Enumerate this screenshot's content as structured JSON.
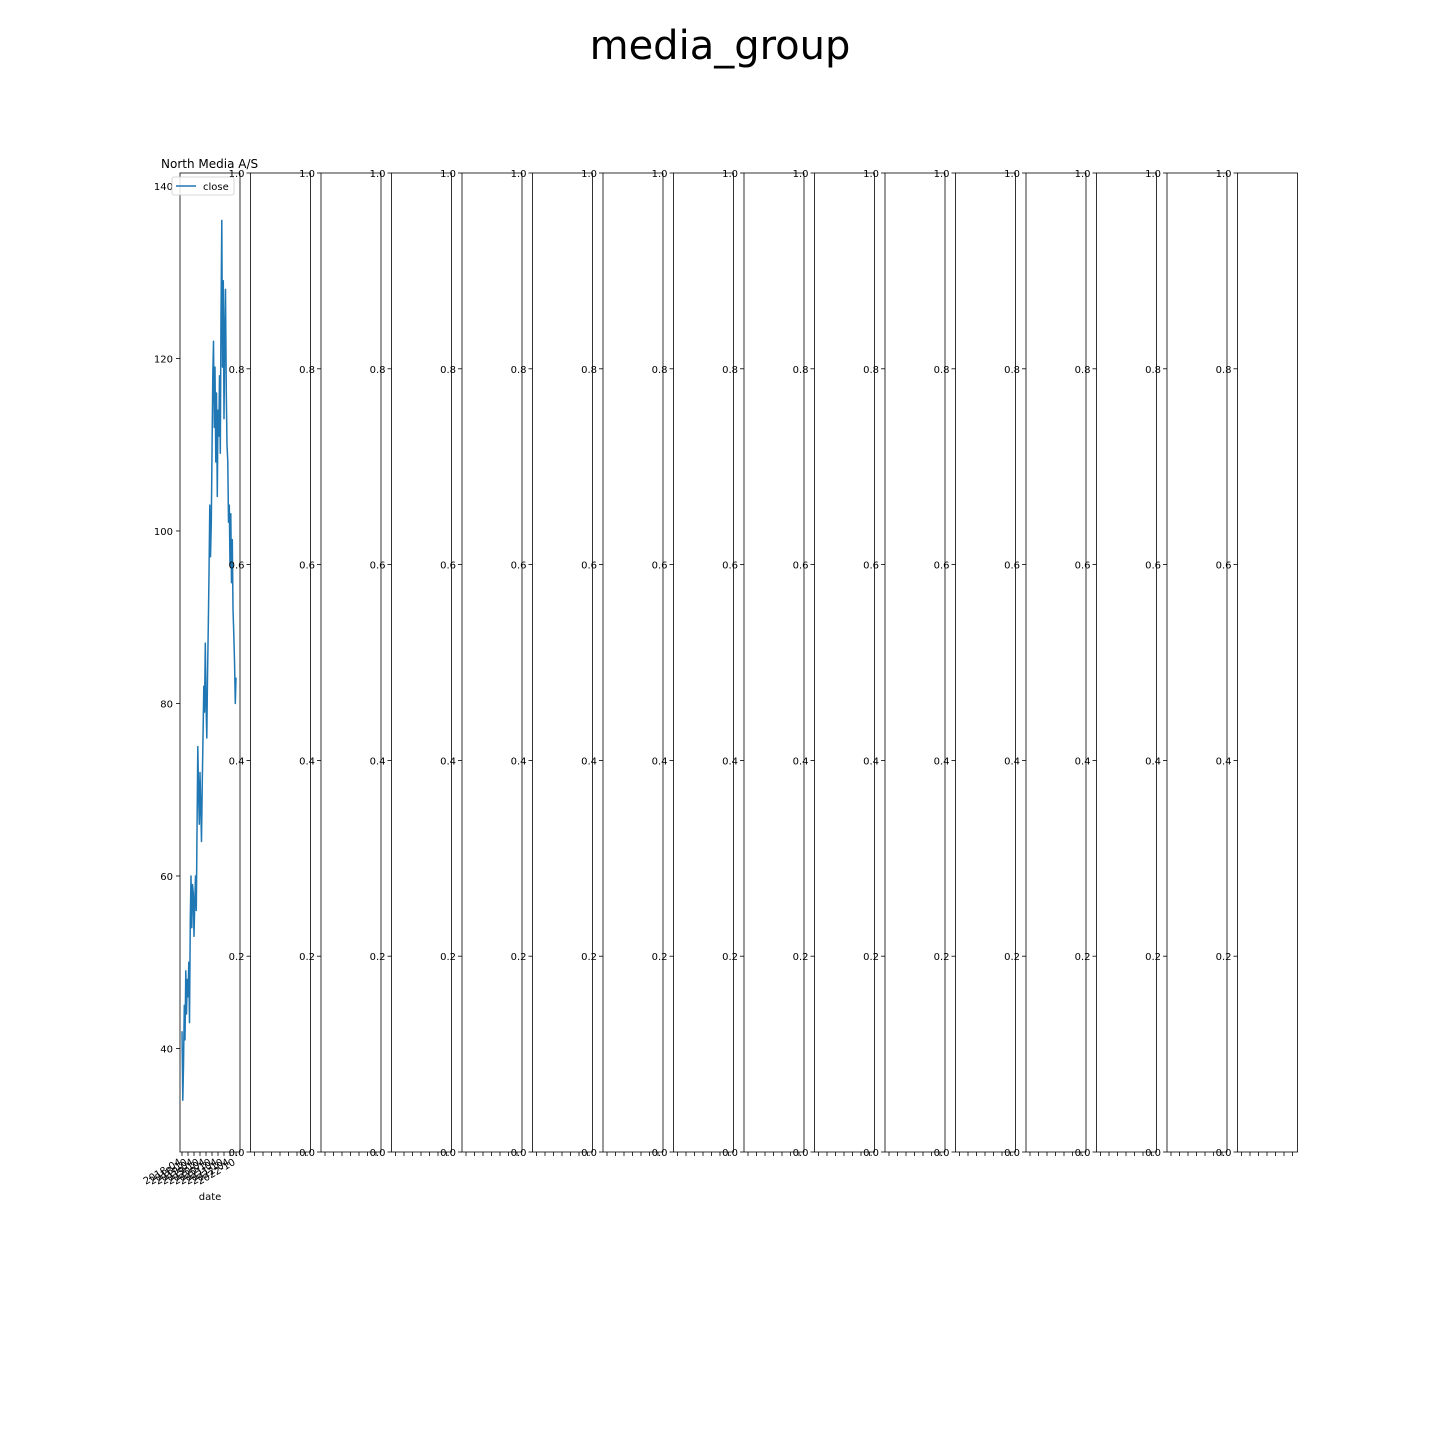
{
  "figure": {
    "title": "media_group"
  },
  "chart_data": [
    {
      "type": "line",
      "title": "North Media A/S",
      "xlabel": "date",
      "ylabel": "",
      "ylim": [
        28,
        141.5
      ],
      "yticks": [
        40,
        60,
        80,
        100,
        120,
        140
      ],
      "xtick_labels": [
        "2018-04",
        "2018-10",
        "2019-04",
        "2019-10",
        "2020-04",
        "2020-10",
        "2021-04",
        "2021-10",
        "2022-04",
        "2022-10"
      ],
      "legend": {
        "entries": [
          "close"
        ],
        "placement": "upper left"
      },
      "series": [
        {
          "name": "close",
          "color": "#1f77b4",
          "values": [
            42,
            34,
            38,
            45,
            41,
            49,
            44,
            48,
            46,
            50,
            43,
            55,
            60,
            54,
            59,
            58,
            53,
            57,
            60,
            56,
            65,
            75,
            70,
            66,
            72,
            68,
            64,
            71,
            76,
            82,
            79,
            87,
            80,
            76,
            83,
            89,
            95,
            103,
            97,
            101,
            109,
            118,
            122,
            112,
            119,
            108,
            116,
            104,
            114,
            111,
            118,
            109,
            125,
            136,
            119,
            129,
            113,
            123,
            128,
            116,
            110,
            108,
            101,
            103,
            96,
            102,
            94,
            99,
            91,
            88,
            85,
            80,
            83
          ]
        }
      ]
    },
    {
      "type": "line",
      "title": "",
      "yticks": [
        "0.0",
        "0.2",
        "0.4",
        "0.6",
        "0.8",
        "1.0"
      ],
      "series": []
    },
    {
      "type": "line",
      "title": "",
      "yticks": [
        "0.0",
        "0.2",
        "0.4",
        "0.6",
        "0.8",
        "1.0"
      ],
      "series": []
    },
    {
      "type": "line",
      "title": "",
      "yticks": [
        "0.0",
        "0.2",
        "0.4",
        "0.6",
        "0.8",
        "1.0"
      ],
      "series": []
    },
    {
      "type": "line",
      "title": "",
      "yticks": [
        "0.0",
        "0.2",
        "0.4",
        "0.6",
        "0.8",
        "1.0"
      ],
      "series": []
    },
    {
      "type": "line",
      "title": "",
      "yticks": [
        "0.0",
        "0.2",
        "0.4",
        "0.6",
        "0.8",
        "1.0"
      ],
      "series": []
    },
    {
      "type": "line",
      "title": "",
      "yticks": [
        "0.0",
        "0.2",
        "0.4",
        "0.6",
        "0.8",
        "1.0"
      ],
      "series": []
    },
    {
      "type": "line",
      "title": "",
      "yticks": [
        "0.0",
        "0.2",
        "0.4",
        "0.6",
        "0.8",
        "1.0"
      ],
      "series": []
    },
    {
      "type": "line",
      "title": "",
      "yticks": [
        "0.0",
        "0.2",
        "0.4",
        "0.6",
        "0.8",
        "1.0"
      ],
      "series": []
    },
    {
      "type": "line",
      "title": "",
      "yticks": [
        "0.0",
        "0.2",
        "0.4",
        "0.6",
        "0.8",
        "1.0"
      ],
      "series": []
    },
    {
      "type": "line",
      "title": "",
      "yticks": [
        "0.0",
        "0.2",
        "0.4",
        "0.6",
        "0.8",
        "1.0"
      ],
      "series": []
    },
    {
      "type": "line",
      "title": "",
      "yticks": [
        "0.0",
        "0.2",
        "0.4",
        "0.6",
        "0.8",
        "1.0"
      ],
      "series": []
    },
    {
      "type": "line",
      "title": "",
      "yticks": [
        "0.0",
        "0.2",
        "0.4",
        "0.6",
        "0.8",
        "1.0"
      ],
      "series": []
    },
    {
      "type": "line",
      "title": "",
      "yticks": [
        "0.0",
        "0.2",
        "0.4",
        "0.6",
        "0.8",
        "1.0"
      ],
      "series": []
    },
    {
      "type": "line",
      "title": "",
      "yticks": [
        "0.0",
        "0.2",
        "0.4",
        "0.6",
        "0.8",
        "1.0"
      ],
      "series": []
    },
    {
      "type": "line",
      "title": "",
      "yticks": [
        "0.0",
        "0.2",
        "0.4",
        "0.6",
        "0.8",
        "1.0"
      ],
      "series": []
    }
  ]
}
